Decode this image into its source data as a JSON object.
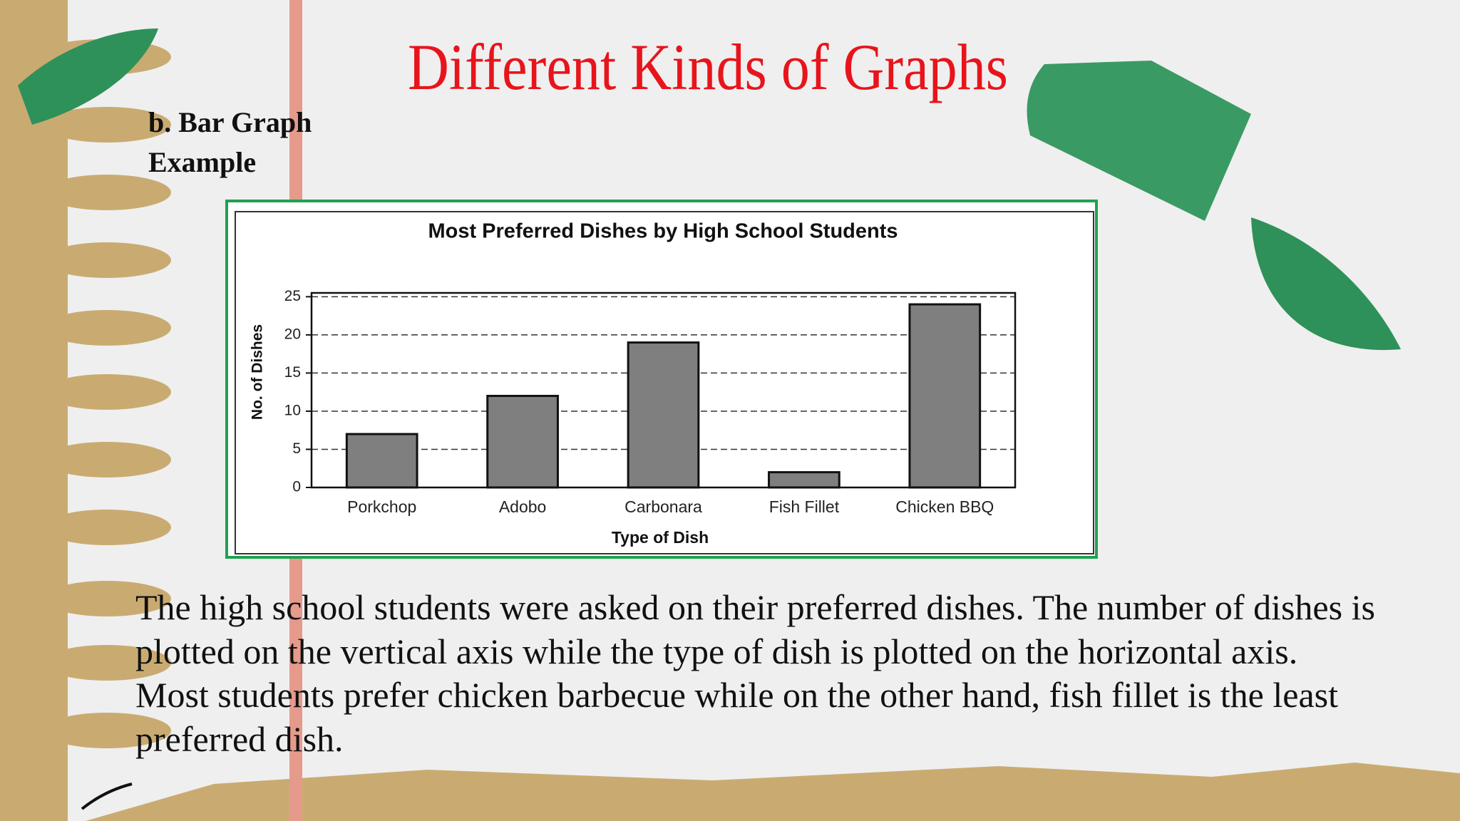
{
  "slide": {
    "title": "Different Kinds of Graphs",
    "subtitle": [
      "b. Bar Graph",
      "Example"
    ],
    "paragraph": "The high school students were asked on their preferred dishes. The number of dishes is plotted on the vertical axis while the type of dish is plotted on the horizontal axis. Most students prefer chicken barbecue while on the other hand, fish fillet is the least preferred dish."
  },
  "chart_data": {
    "type": "bar",
    "title": "Most Preferred Dishes by High School Students",
    "x_label": "Type of Dish",
    "y_label": "No. of Dishes",
    "categories": [
      "Porkchop",
      "Adobo",
      "Carbonara",
      "Fish Fillet",
      "Chicken BBQ"
    ],
    "values": [
      7,
      12,
      19,
      2,
      24
    ],
    "color": "#7f7f7f",
    "ylim": [
      0,
      25.5
    ],
    "yticks": [
      0,
      5,
      10,
      15,
      20,
      25
    ],
    "grid": true
  }
}
